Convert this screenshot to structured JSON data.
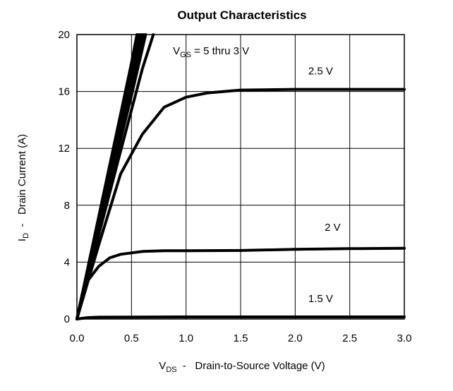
{
  "chart_data": {
    "type": "line",
    "title": "Output Characteristics",
    "xlabel": {
      "main": "V",
      "sub": "DS",
      "rest": "  -   Drain-to-Source Voltage (V)"
    },
    "ylabel": {
      "main": "I",
      "sub": "D",
      "rest": "  -   Drain Current (A)"
    },
    "xlim": [
      0,
      3
    ],
    "ylim": [
      0,
      20
    ],
    "x_ticks": [
      0,
      0.5,
      1,
      1.5,
      2,
      2.5,
      3
    ],
    "x_tick_labels": [
      "0.0",
      "0.5",
      "1.0",
      "1.5",
      "2.0",
      "2.5",
      "3.0"
    ],
    "y_ticks": [
      0,
      4,
      8,
      12,
      16,
      20
    ],
    "y_tick_labels": [
      "0",
      "4",
      "8",
      "12",
      "16",
      "20"
    ],
    "grid": true,
    "series_color": "#000000",
    "annotations": [
      {
        "main": "V",
        "sub": "GS",
        "rest": " = 5 thru 3 V",
        "x": 0.88,
        "y": 18.6
      },
      {
        "text": "2.5 V",
        "x": 2.12,
        "y": 17.2
      },
      {
        "text": "2 V",
        "x": 2.27,
        "y": 6.2
      },
      {
        "text": "1.5 V",
        "x": 2.12,
        "y": 1.2
      }
    ],
    "series": [
      {
        "values": [
          [
            0,
            0
          ],
          [
            0.2,
            7.2
          ],
          [
            0.4,
            14.4
          ],
          [
            0.5,
            18
          ],
          [
            0.55,
            20
          ]
        ]
      },
      {
        "values": [
          [
            0,
            0
          ],
          [
            0.2,
            7.0
          ],
          [
            0.4,
            14.0
          ],
          [
            0.5,
            17.5
          ],
          [
            0.57,
            20
          ]
        ]
      },
      {
        "values": [
          [
            0,
            0
          ],
          [
            0.2,
            6.8
          ],
          [
            0.4,
            13.6
          ],
          [
            0.5,
            17
          ],
          [
            0.59,
            20
          ]
        ]
      },
      {
        "values": [
          [
            0,
            0
          ],
          [
            0.2,
            6.6
          ],
          [
            0.4,
            13.2
          ],
          [
            0.5,
            16.5
          ],
          [
            0.61,
            20
          ]
        ]
      },
      {
        "values": [
          [
            0,
            0
          ],
          [
            0.2,
            6.3
          ],
          [
            0.4,
            12.6
          ],
          [
            0.5,
            15.7
          ],
          [
            0.63,
            20
          ]
        ]
      },
      {
        "values": [
          [
            0,
            0
          ],
          [
            0.2,
            5.9
          ],
          [
            0.4,
            11.8
          ],
          [
            0.6,
            17.6
          ],
          [
            0.7,
            20
          ]
        ]
      },
      {
        "values": [
          [
            0,
            0
          ],
          [
            0.2,
            5.2
          ],
          [
            0.4,
            10.2
          ],
          [
            0.6,
            13.0
          ],
          [
            0.8,
            14.9
          ],
          [
            1.0,
            15.6
          ],
          [
            1.2,
            15.9
          ],
          [
            1.5,
            16.1
          ],
          [
            2.0,
            16.15
          ],
          [
            3.0,
            16.15
          ]
        ]
      },
      {
        "values": [
          [
            0,
            0
          ],
          [
            0.05,
            1.8
          ],
          [
            0.1,
            2.7
          ],
          [
            0.2,
            3.7
          ],
          [
            0.3,
            4.3
          ],
          [
            0.4,
            4.55
          ],
          [
            0.6,
            4.75
          ],
          [
            0.8,
            4.8
          ],
          [
            1.0,
            4.8
          ],
          [
            1.5,
            4.82
          ],
          [
            2.0,
            4.9
          ],
          [
            2.5,
            4.95
          ],
          [
            3.0,
            4.98
          ]
        ]
      },
      {
        "values": [
          [
            0,
            0
          ],
          [
            0.1,
            0.1
          ],
          [
            0.2,
            0.13
          ],
          [
            0.5,
            0.14
          ],
          [
            1.0,
            0.15
          ],
          [
            2.0,
            0.15
          ],
          [
            3.0,
            0.15
          ]
        ]
      }
    ]
  }
}
